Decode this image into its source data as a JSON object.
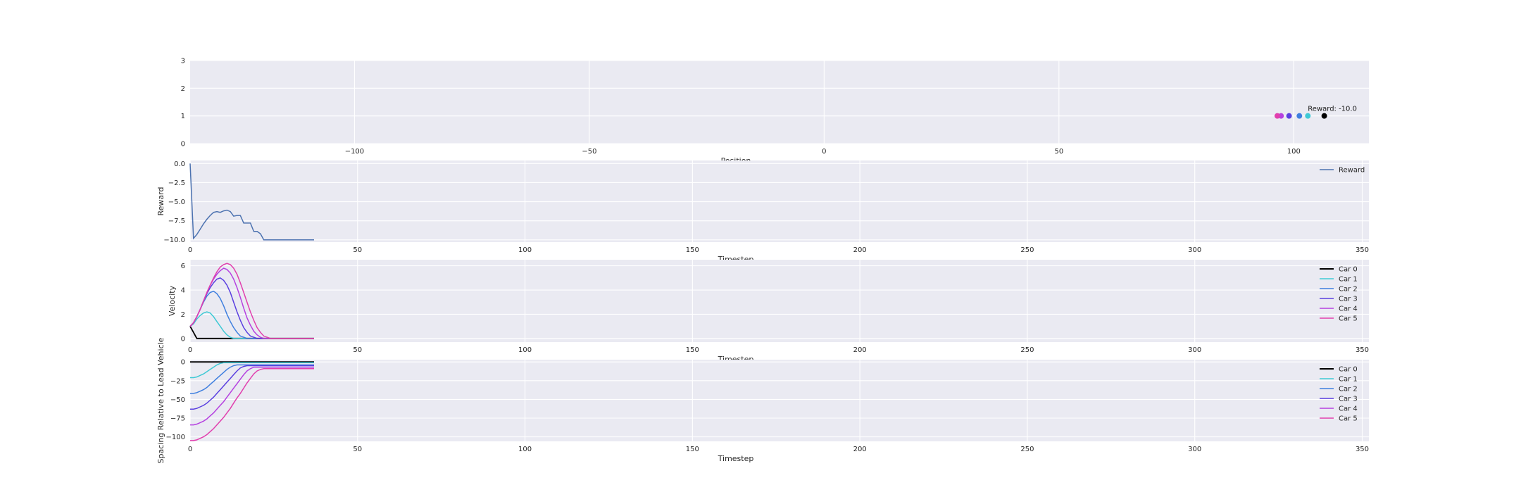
{
  "chart_data": [
    {
      "type": "scatter",
      "xlabel": "Position",
      "ylabel": "",
      "xlim": [
        -135,
        116
      ],
      "ylim": [
        0,
        3
      ],
      "xticks": [
        -100,
        -50,
        0,
        50,
        100
      ],
      "yticks": [
        0,
        1,
        2,
        3
      ],
      "grid": true,
      "points": [
        {
          "x": 106.5,
          "y": 1,
          "color": "#000000"
        },
        {
          "x": 103.0,
          "y": 1,
          "color": "#3fc9d5"
        },
        {
          "x": 101.2,
          "y": 1,
          "color": "#3f7fdf"
        },
        {
          "x": 99.0,
          "y": 1,
          "color": "#5a3fe0"
        },
        {
          "x": 97.3,
          "y": 1,
          "color": "#b541e0"
        },
        {
          "x": 96.5,
          "y": 1,
          "color": "#e13fae"
        }
      ],
      "annotation": {
        "text": "Reward: -10.0",
        "x": 103.0,
        "y": 1.1
      }
    },
    {
      "type": "line",
      "xlabel": "Timestep",
      "ylabel": "Reward",
      "xlim": [
        0,
        352
      ],
      "ylim": [
        -10.3,
        0.4
      ],
      "xticks": [
        0,
        50,
        100,
        150,
        200,
        250,
        300,
        350
      ],
      "yticks": [
        0.0,
        -2.5,
        -5.0,
        -7.5,
        -10.0
      ],
      "ytick_labels": [
        "0.0",
        "−2.5",
        "−5.0",
        "−7.5",
        "−10.0"
      ],
      "grid": true,
      "legend": "top-right",
      "series": [
        {
          "name": "Reward",
          "color": "#4c72b0",
          "x": [
            0,
            1,
            2,
            3,
            4,
            5,
            6,
            7,
            8,
            9,
            10,
            11,
            12,
            13,
            14,
            15,
            16,
            17,
            18,
            19,
            20,
            21,
            22,
            23,
            24,
            25,
            26,
            27,
            28,
            29,
            30,
            31,
            32,
            33,
            34,
            35,
            36,
            37
          ],
          "values": [
            0.0,
            -9.8,
            -9.3,
            -8.6,
            -7.9,
            -7.3,
            -6.8,
            -6.4,
            -6.3,
            -6.4,
            -6.2,
            -6.1,
            -6.3,
            -6.9,
            -6.8,
            -6.8,
            -7.8,
            -7.8,
            -7.8,
            -8.9,
            -8.9,
            -9.2,
            -10.0,
            -10.0,
            -10.0,
            -10.0,
            -10.0,
            -10.0,
            -10.0,
            -10.0,
            -10.0,
            -10.0,
            -10.0,
            -10.0,
            -10.0,
            -10.0,
            -10.0,
            -10.0
          ]
        }
      ]
    },
    {
      "type": "line",
      "xlabel": "Timestep",
      "ylabel": "Velocity",
      "xlim": [
        0,
        352
      ],
      "ylim": [
        -0.3,
        6.5
      ],
      "xticks": [
        0,
        50,
        100,
        150,
        200,
        250,
        300,
        350
      ],
      "yticks": [
        0,
        2,
        4,
        6
      ],
      "grid": true,
      "legend": "top-right",
      "x": [
        0,
        1,
        2,
        3,
        4,
        5,
        6,
        7,
        8,
        9,
        10,
        11,
        12,
        13,
        14,
        15,
        16,
        17,
        18,
        19,
        20,
        21,
        22,
        23,
        24,
        25,
        26,
        27,
        28,
        29,
        30,
        31,
        32,
        33,
        34,
        35,
        36,
        37
      ],
      "series": [
        {
          "name": "Car 0",
          "color": "#000000",
          "values": [
            1.0,
            0.5,
            0.0,
            0.0,
            0.0,
            0.0,
            0.0,
            0.0,
            0.0,
            0.0,
            0.0,
            0.0,
            0.0,
            0.0,
            0.0,
            0.0,
            0.0,
            0.0,
            0.0,
            0.0,
            0.0,
            0.0,
            0.0,
            0.0,
            0.0,
            0.0,
            0.0,
            0.0,
            0.0,
            0.0,
            0.0,
            0.0,
            0.0,
            0.0,
            0.0,
            0.0,
            0.0,
            0.0
          ]
        },
        {
          "name": "Car 1",
          "color": "#3fc9d5",
          "values": [
            1.0,
            1.2,
            1.6,
            1.9,
            2.1,
            2.2,
            2.1,
            1.8,
            1.4,
            1.0,
            0.6,
            0.3,
            0.1,
            0.0,
            0.0,
            0.0,
            0.0,
            0.0,
            0.0,
            0.0,
            0.0,
            0.0,
            0.0,
            0.0,
            0.0,
            0.0,
            0.0,
            0.0,
            0.0,
            0.0,
            0.0,
            0.0,
            0.0,
            0.0,
            0.0,
            0.0,
            0.0,
            0.0
          ]
        },
        {
          "name": "Car 2",
          "color": "#3f7fdf",
          "values": [
            1.0,
            1.3,
            1.8,
            2.4,
            3.0,
            3.5,
            3.8,
            3.9,
            3.7,
            3.3,
            2.7,
            2.0,
            1.4,
            0.9,
            0.5,
            0.2,
            0.1,
            0.0,
            0.0,
            0.0,
            0.0,
            0.0,
            0.0,
            0.0,
            0.0,
            0.0,
            0.0,
            0.0,
            0.0,
            0.0,
            0.0,
            0.0,
            0.0,
            0.0,
            0.0,
            0.0,
            0.0,
            0.0
          ]
        },
        {
          "name": "Car 3",
          "color": "#5a3fe0",
          "values": [
            1.0,
            1.3,
            1.8,
            2.4,
            3.1,
            3.7,
            4.2,
            4.6,
            4.9,
            5.0,
            4.8,
            4.4,
            3.8,
            3.0,
            2.2,
            1.5,
            0.9,
            0.5,
            0.2,
            0.1,
            0.0,
            0.0,
            0.0,
            0.0,
            0.0,
            0.0,
            0.0,
            0.0,
            0.0,
            0.0,
            0.0,
            0.0,
            0.0,
            0.0,
            0.0,
            0.0,
            0.0,
            0.0
          ]
        },
        {
          "name": "Car 4",
          "color": "#b541e0",
          "values": [
            1.0,
            1.3,
            1.8,
            2.4,
            3.1,
            3.8,
            4.4,
            4.9,
            5.3,
            5.6,
            5.8,
            5.7,
            5.4,
            4.9,
            4.2,
            3.4,
            2.5,
            1.7,
            1.1,
            0.6,
            0.3,
            0.1,
            0.0,
            0.0,
            0.0,
            0.0,
            0.0,
            0.0,
            0.0,
            0.0,
            0.0,
            0.0,
            0.0,
            0.0,
            0.0,
            0.0,
            0.0,
            0.0
          ]
        },
        {
          "name": "Car 5",
          "color": "#e13fae",
          "values": [
            1.0,
            1.3,
            1.8,
            2.4,
            3.1,
            3.8,
            4.4,
            5.0,
            5.5,
            5.9,
            6.1,
            6.2,
            6.1,
            5.8,
            5.3,
            4.6,
            3.8,
            3.0,
            2.2,
            1.5,
            0.9,
            0.5,
            0.2,
            0.1,
            0.0,
            0.0,
            0.0,
            0.0,
            0.0,
            0.0,
            0.0,
            0.0,
            0.0,
            0.0,
            0.0,
            0.0,
            0.0,
            0.0
          ]
        }
      ]
    },
    {
      "type": "line",
      "xlabel": "Timestep",
      "ylabel": "Spacing Relative to Lead Vehicle",
      "xlim": [
        0,
        352
      ],
      "ylim": [
        -106,
        3
      ],
      "xticks": [
        0,
        50,
        100,
        150,
        200,
        250,
        300,
        350
      ],
      "yticks": [
        0,
        -25,
        -50,
        -75,
        -100
      ],
      "ytick_labels": [
        "0",
        "−25",
        "−50",
        "−75",
        "−100"
      ],
      "grid": true,
      "legend": "top-right",
      "x": [
        0,
        1,
        2,
        3,
        4,
        5,
        6,
        7,
        8,
        9,
        10,
        11,
        12,
        13,
        14,
        15,
        16,
        17,
        18,
        19,
        20,
        21,
        22,
        23,
        24,
        25,
        26,
        27,
        28,
        29,
        30,
        31,
        32,
        33,
        34,
        35,
        36,
        37
      ],
      "series": [
        {
          "name": "Car 0",
          "color": "#000000",
          "values": [
            0,
            0,
            0,
            0,
            0,
            0,
            0,
            0,
            0,
            0,
            0,
            0,
            0,
            0,
            0,
            0,
            0,
            0,
            0,
            0,
            0,
            0,
            0,
            0,
            0,
            0,
            0,
            0,
            0,
            0,
            0,
            0,
            0,
            0,
            0,
            0,
            0,
            0
          ]
        },
        {
          "name": "Car 1",
          "color": "#3fc9d5",
          "values": [
            -21,
            -21,
            -20,
            -18,
            -16,
            -13,
            -10,
            -7,
            -4,
            -2,
            -1,
            -1,
            -1,
            -1,
            -1,
            -1,
            -1,
            -1,
            -1,
            -1,
            -1,
            -1,
            -1,
            -1,
            -1,
            -1,
            -1,
            -1,
            -1,
            -1,
            -1,
            -1,
            -1,
            -1,
            -1,
            -1,
            -1,
            -1
          ]
        },
        {
          "name": "Car 2",
          "color": "#3f7fdf",
          "values": [
            -42,
            -42,
            -41,
            -39,
            -37,
            -34,
            -30,
            -26,
            -22,
            -18,
            -14,
            -10,
            -7,
            -5,
            -4,
            -4,
            -4,
            -4,
            -4,
            -4,
            -4,
            -4,
            -4,
            -4,
            -4,
            -4,
            -4,
            -4,
            -4,
            -4,
            -4,
            -4,
            -4,
            -4,
            -4,
            -4,
            -4,
            -4
          ]
        },
        {
          "name": "Car 3",
          "color": "#5a3fe0",
          "values": [
            -63,
            -63,
            -62,
            -60,
            -58,
            -55,
            -51,
            -47,
            -42,
            -37,
            -32,
            -27,
            -22,
            -17,
            -12,
            -8,
            -6,
            -5,
            -5,
            -5,
            -5,
            -5,
            -5,
            -5,
            -5,
            -5,
            -5,
            -5,
            -5,
            -5,
            -5,
            -5,
            -5,
            -5,
            -5,
            -5,
            -5,
            -5
          ]
        },
        {
          "name": "Car 4",
          "color": "#b541e0",
          "values": [
            -84,
            -84,
            -83,
            -81,
            -79,
            -76,
            -72,
            -68,
            -63,
            -58,
            -53,
            -47,
            -41,
            -35,
            -29,
            -23,
            -17,
            -12,
            -9,
            -7,
            -7,
            -7,
            -7,
            -7,
            -7,
            -7,
            -7,
            -7,
            -7,
            -7,
            -7,
            -7,
            -7,
            -7,
            -7,
            -7,
            -7,
            -7
          ]
        },
        {
          "name": "Car 5",
          "color": "#e13fae",
          "values": [
            -105,
            -105,
            -104,
            -102,
            -100,
            -97,
            -93,
            -89,
            -84,
            -79,
            -74,
            -68,
            -62,
            -55,
            -48,
            -42,
            -35,
            -28,
            -22,
            -16,
            -12,
            -10,
            -9,
            -9,
            -9,
            -9,
            -9,
            -9,
            -9,
            -9,
            -9,
            -9,
            -9,
            -9,
            -9,
            -9,
            -9,
            -9
          ]
        }
      ]
    }
  ]
}
